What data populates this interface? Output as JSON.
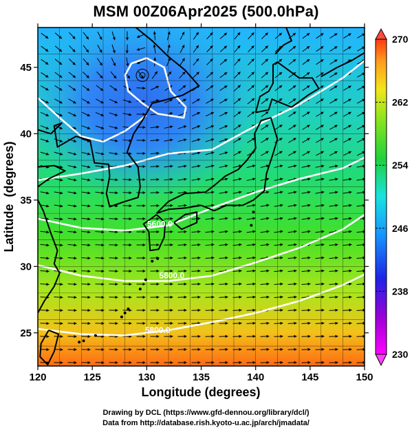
{
  "title": "MSM 00Z06Apr2025 (500.0hPa)",
  "axes": {
    "xlabel": "Longitude (degrees)",
    "ylabel": "Latitude  (degrees)",
    "xlim": [
      120,
      150
    ],
    "ylim": [
      22.5,
      48
    ],
    "xticks": [
      120,
      125,
      130,
      135,
      140,
      145,
      150
    ],
    "yticks": [
      25,
      30,
      35,
      40,
      45
    ]
  },
  "colorbar": {
    "min": 230,
    "max": 270,
    "tick_labels": [
      "270",
      "262",
      "254",
      "246",
      "238",
      "230"
    ],
    "tick_values": [
      270,
      262,
      254,
      246,
      238,
      230
    ]
  },
  "contour_labels": [
    {
      "text": "5600.0",
      "lon": 131.2,
      "lat": 33.0
    },
    {
      "text": "5800.0",
      "lon": 132.3,
      "lat": 29.1
    },
    {
      "text": "5800.0",
      "lon": 131.0,
      "lat": 25.0
    }
  ],
  "credits": {
    "line1": "Drawing by DCL (https://www.gfd-dennou.org/library/dcl/)",
    "line2": "Data from http://database.rish.kyoto-u.ac.jp/arch/jmadata/"
  },
  "map": {
    "projection": "lat-lon",
    "field": "temperature",
    "low_center": {
      "lon": 129.6,
      "lat": 44.4
    },
    "colors": {
      "coast": "#000000",
      "contour": "#ffffff",
      "grid": "#000000",
      "vector": "#000000"
    }
  }
}
